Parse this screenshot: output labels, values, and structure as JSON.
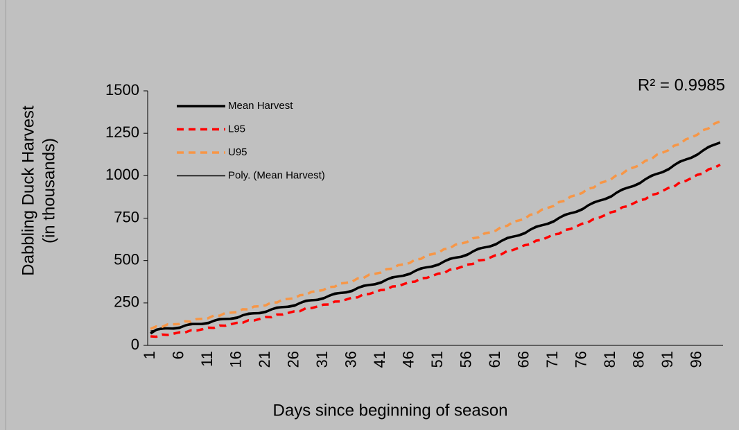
{
  "chart_data": {
    "type": "line",
    "xlabel": "Days since beginning of season",
    "ylabel": [
      "Dabbling Duck Harvest",
      "(in thousands)"
    ],
    "annotation": "R² = 0.9985",
    "ylim": [
      0,
      1500
    ],
    "yticks": [
      0,
      250,
      500,
      750,
      1000,
      1250,
      1500
    ],
    "legend": "top-left",
    "categories": [
      1,
      null,
      null,
      null,
      null,
      6,
      null,
      null,
      null,
      null,
      11,
      null,
      null,
      null,
      null,
      16,
      null,
      null,
      null,
      null,
      21,
      null,
      null,
      null,
      null,
      26,
      null,
      null,
      null,
      null,
      31,
      null,
      null,
      null,
      null,
      36,
      null,
      null,
      null,
      null,
      41,
      null,
      null,
      null,
      null,
      46,
      null,
      null,
      null,
      null,
      51,
      null,
      null,
      null,
      null,
      56,
      null,
      null,
      null,
      null,
      61,
      null,
      null,
      null,
      null,
      66,
      null,
      null,
      null,
      null,
      71,
      null,
      null,
      null,
      null,
      76,
      null,
      null,
      null,
      null,
      81,
      null,
      null,
      null,
      null,
      86,
      null,
      null,
      null,
      null,
      91,
      null,
      null,
      null,
      null,
      96,
      null,
      null,
      null,
      null
    ],
    "series": [
      {
        "name": "Mean Harvest",
        "color": "#000000",
        "line_style": "solid",
        "values": [
          70,
          92,
          100,
          100,
          99,
          103,
          117,
          126,
          126,
          126,
          131,
          145,
          155,
          156,
          157,
          162,
          177,
          187,
          189,
          190,
          197,
          212,
          223,
          226,
          228,
          234,
          250,
          263,
          266,
          268,
          276,
          292,
          305,
          309,
          312,
          320,
          338,
          351,
          356,
          360,
          369,
          387,
          401,
          406,
          411,
          420,
          439,
          454,
          460,
          465,
          475,
          494,
          510,
          517,
          522,
          533,
          553,
          570,
          577,
          583,
          595,
          616,
          633,
          641,
          648,
          660,
          682,
          699,
          708,
          716,
          729,
          751,
          769,
          779,
          787,
          801,
          824,
          842,
          853,
          862,
          876,
          900,
          919,
          930,
          940,
          955,
          979,
          999,
          1011,
          1021,
          1037,
          1062,
          1083,
          1095,
          1106,
          1123,
          1148,
          1170,
          1183,
          1195
        ]
      },
      {
        "name": "L95",
        "color": "#ff0000",
        "line_style": "dashed",
        "values": [
          53,
          51,
          64,
          62,
          69,
          77,
          76,
          89,
          87,
          95,
          104,
          103,
          117,
          116,
          125,
          133,
          133,
          148,
          147,
          156,
          167,
          166,
          182,
          182,
          192,
          201,
          202,
          219,
          220,
          229,
          240,
          241,
          258,
          259,
          270,
          281,
          283,
          301,
          303,
          314,
          326,
          328,
          347,
          349,
          361,
          373,
          376,
          395,
          398,
          410,
          423,
          426,
          446,
          450,
          462,
          476,
          480,
          500,
          504,
          517,
          532,
          537,
          557,
          562,
          576,
          590,
          596,
          617,
          622,
          637,
          653,
          658,
          680,
          686,
          701,
          717,
          724,
          745,
          753,
          768,
          784,
          792,
          814,
          821,
          838,
          855,
          862,
          886,
          894,
          910,
          928,
          936,
          961,
          969,
          986,
          1005,
          1013,
          1038,
          1047,
          1065
        ]
      },
      {
        "name": "U95",
        "color": "#f79646",
        "line_style": "dashed",
        "values": [
          97,
          112,
          109,
          124,
          124,
          126,
          142,
          140,
          155,
          157,
          160,
          176,
          175,
          191,
          193,
          196,
          213,
          212,
          229,
          231,
          236,
          253,
          253,
          271,
          274,
          278,
          296,
          298,
          316,
          320,
          326,
          344,
          346,
          365,
          369,
          375,
          395,
          397,
          417,
          422,
          429,
          449,
          452,
          472,
          478,
          485,
          506,
          510,
          531,
          538,
          546,
          567,
          572,
          594,
          600,
          609,
          631,
          637,
          659,
          666,
          676,
          699,
          705,
          728,
          736,
          746,
          770,
          776,
          800,
          810,
          821,
          845,
          852,
          877,
          886,
          898,
          923,
          930,
          956,
          966,
          978,
          1004,
          1012,
          1038,
          1049,
          1062,
          1088,
          1097,
          1124,
          1136,
          1150,
          1177,
          1187,
          1214,
          1226,
          1241,
          1268,
          1279,
          1307,
          1320
        ]
      },
      {
        "name": "Poly. (Mean Harvest)",
        "color": "#000000",
        "line_style": "solid",
        "values": [
          85,
          90,
          94,
          99,
          104,
          109,
          115,
          120,
          125,
          131,
          137,
          143,
          149,
          155,
          162,
          168,
          175,
          181,
          188,
          195,
          203,
          210,
          217,
          225,
          233,
          240,
          248,
          257,
          265,
          273,
          282,
          290,
          299,
          308,
          317,
          326,
          336,
          345,
          355,
          365,
          375,
          385,
          395,
          405,
          416,
          426,
          437,
          448,
          459,
          470,
          481,
          492,
          504,
          516,
          527,
          539,
          551,
          564,
          576,
          588,
          601,
          614,
          627,
          640,
          653,
          666,
          680,
          693,
          707,
          721,
          735,
          749,
          763,
          778,
          792,
          807,
          822,
          836,
          852,
          867,
          882,
          898,
          913,
          929,
          945,
          961,
          977,
          993,
          1010,
          1026,
          1043,
          1060,
          1077,
          1094,
          1111,
          1129,
          1146,
          1164,
          1182,
          1200
        ]
      }
    ]
  }
}
